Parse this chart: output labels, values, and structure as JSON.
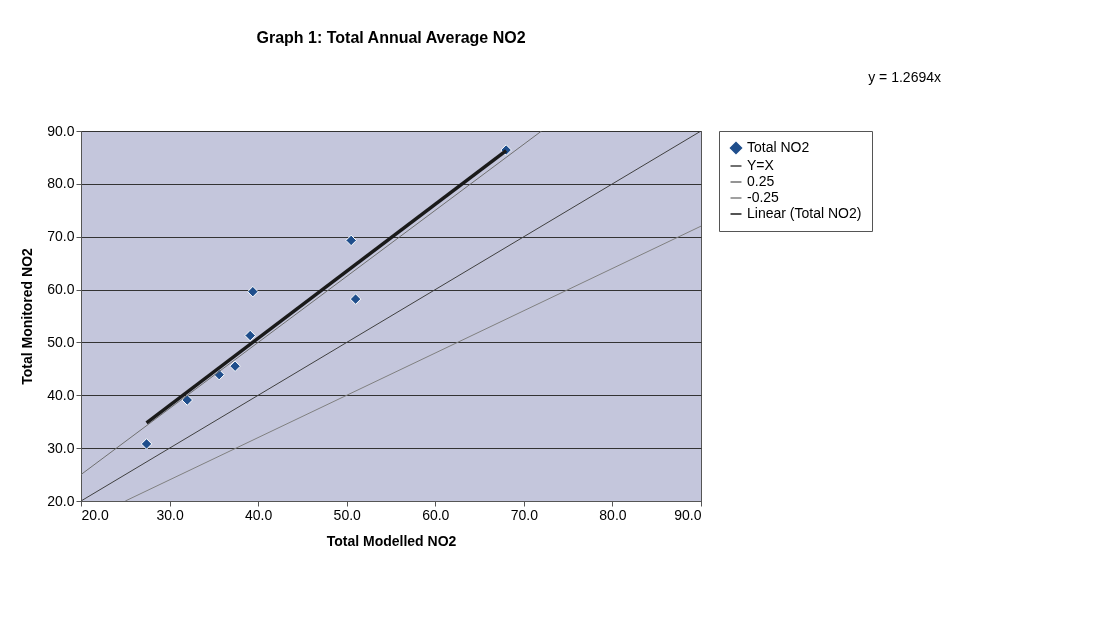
{
  "chart_data": {
    "type": "scatter",
    "title": "Graph 1: Total Annual Average  NO2",
    "xlabel": "Total Modelled  NO2",
    "ylabel": "Total Monitored NO2",
    "annotations": [
      "y = 1.2694x"
    ],
    "series": [
      {
        "name": "Total NO2",
        "color": "#1f4e8c",
        "x": [
          27.4,
          32.0,
          35.6,
          37.4,
          39.1,
          39.4,
          50.5,
          51.0,
          68.0
        ],
        "values": [
          30.8,
          39.1,
          43.9,
          45.5,
          51.3,
          59.6,
          69.3,
          58.2,
          86.4
        ]
      },
      {
        "name": "Y=X",
        "type": "line",
        "marker": "none",
        "color": "#404040",
        "x": [
          20,
          90
        ],
        "values": [
          20,
          90
        ]
      },
      {
        "name": "0.25",
        "type": "line",
        "marker": "none",
        "color": "#707070",
        "x": [
          20,
          72
        ],
        "values": [
          25,
          90
        ]
      },
      {
        "name": "-0.25",
        "type": "line",
        "marker": "none",
        "color": "#808080",
        "x": [
          25,
          90
        ],
        "values": [
          20,
          72
        ]
      },
      {
        "name": "Linear (Total NO2)",
        "type": "line",
        "marker": "none",
        "color": "#1a1a1a",
        "x": [
          27.4,
          68.0
        ],
        "values": [
          34.8,
          86.3
        ]
      }
    ],
    "xlim": [
      20,
      90
    ],
    "ylim": [
      20,
      90
    ],
    "xticks": [
      {
        "value": 20,
        "label": "20.0"
      },
      {
        "value": 30,
        "label": "30.0"
      },
      {
        "value": 40,
        "label": "40.0"
      },
      {
        "value": 50,
        "label": "50.0"
      },
      {
        "value": 60,
        "label": "60.0"
      },
      {
        "value": 70,
        "label": "70.0"
      },
      {
        "value": 80,
        "label": "80.0"
      },
      {
        "value": 90,
        "label": "90.0"
      }
    ],
    "yticks": [
      {
        "value": 20,
        "label": "20.0"
      },
      {
        "value": 30,
        "label": "30.0"
      },
      {
        "value": 40,
        "label": "40.0"
      },
      {
        "value": 50,
        "label": "50.0"
      },
      {
        "value": 60,
        "label": "60.0"
      },
      {
        "value": 70,
        "label": "70.0"
      },
      {
        "value": 80,
        "label": "80.0"
      },
      {
        "value": 90,
        "label": "90.0"
      }
    ],
    "grid": "y",
    "legend": "right",
    "marker": "diamond"
  }
}
